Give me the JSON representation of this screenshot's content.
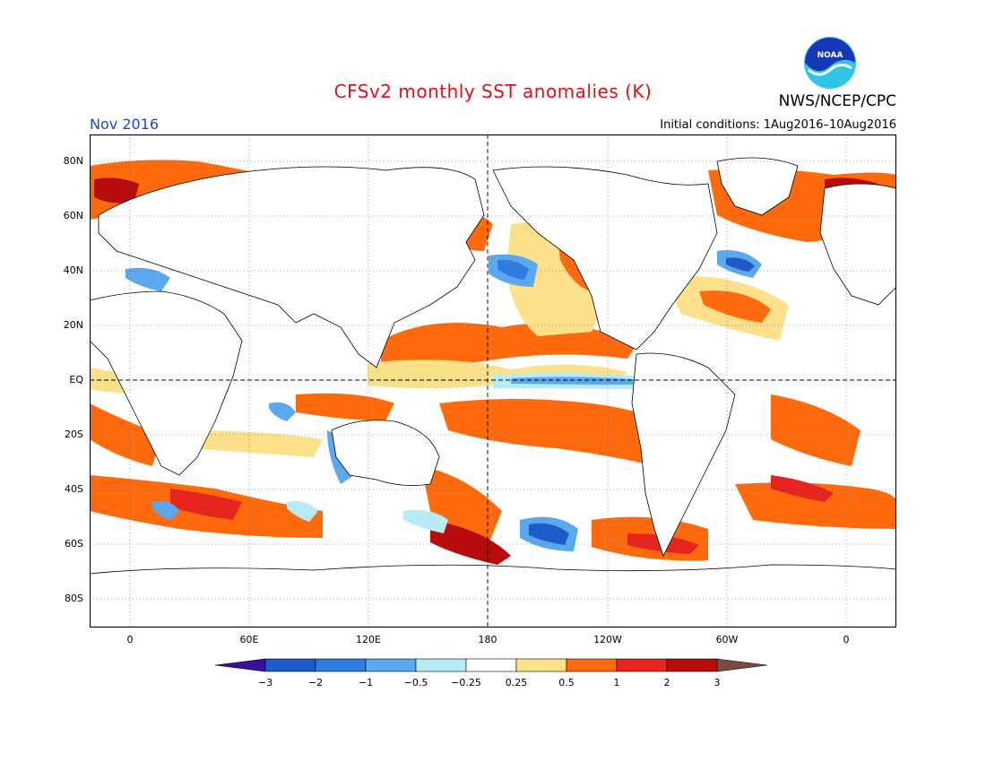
{
  "header": {
    "title": "CFSv2 monthly SST anomalies (K)",
    "org": "NWS/NCEP/CPC",
    "month": "Nov 2016",
    "initial_conditions": "Initial conditions: 1Aug2016–10Aug2016",
    "logo_text": "NOAA"
  },
  "map": {
    "lon_labels": [
      "0",
      "60E",
      "120E",
      "180",
      "120W",
      "60W",
      "0"
    ],
    "lat_labels": [
      "80N",
      "60N",
      "40N",
      "20N",
      "EQ",
      "20S",
      "40S",
      "60S",
      "80S"
    ]
  },
  "colorbar": {
    "labels": [
      "−3",
      "−2",
      "−1",
      "−0.5",
      "−0.25",
      "0.25",
      "0.5",
      "1",
      "2",
      "3"
    ],
    "colors": [
      "#3a0f9e",
      "#1d5cc8",
      "#2f7de0",
      "#5aa8ee",
      "#b7ecf4",
      "#ffffff",
      "#fde08a",
      "#ff6a0c",
      "#e8241e",
      "#b80c0c",
      "#7a4a3c"
    ]
  },
  "colors": {
    "title": "#e01010",
    "month": "#1a46d6"
  }
}
